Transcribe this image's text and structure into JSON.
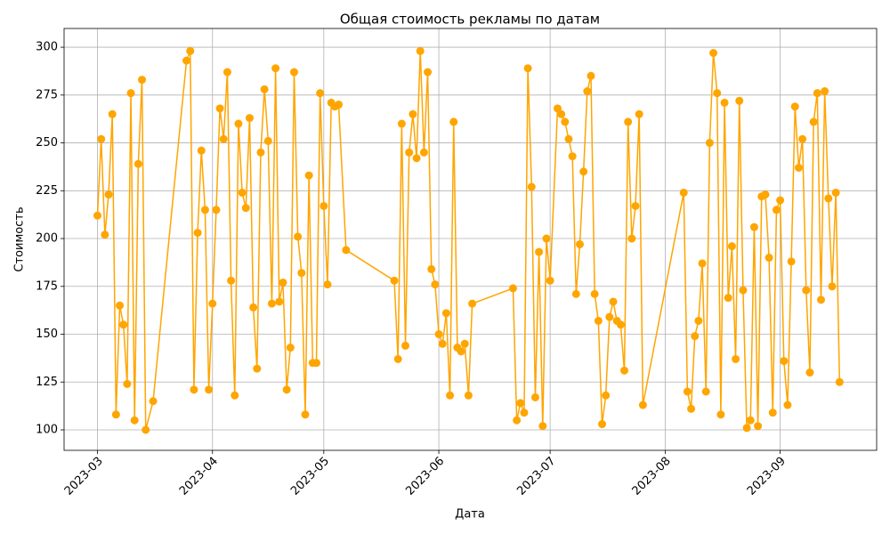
{
  "chart_data": {
    "type": "line",
    "title": "Общая стоимость рекламы по датам",
    "xlabel": "Дата",
    "ylabel": "Стоимость",
    "color": "#ffa500",
    "grid": true,
    "markers": true,
    "xlim": [
      "2023-02-20",
      "2023-09-27"
    ],
    "xticks": [
      {
        "value": "2023-03-01",
        "label": "2023-03"
      },
      {
        "value": "2023-04-01",
        "label": "2023-04"
      },
      {
        "value": "2023-05-01",
        "label": "2023-05"
      },
      {
        "value": "2023-06-01",
        "label": "2023-06"
      },
      {
        "value": "2023-07-01",
        "label": "2023-07"
      },
      {
        "value": "2023-08-01",
        "label": "2023-08"
      },
      {
        "value": "2023-09-01",
        "label": "2023-09"
      }
    ],
    "ylim": [
      89.3,
      309.8
    ],
    "yticks": [
      100,
      125,
      150,
      175,
      200,
      225,
      250,
      275,
      300
    ],
    "x": [
      "2023-03-01",
      "2023-03-02",
      "2023-03-03",
      "2023-03-04",
      "2023-03-05",
      "2023-03-06",
      "2023-03-07",
      "2023-03-08",
      "2023-03-09",
      "2023-03-10",
      "2023-03-11",
      "2023-03-12",
      "2023-03-13",
      "2023-03-14",
      "2023-03-16",
      "2023-03-25",
      "2023-03-26",
      "2023-03-27",
      "2023-03-28",
      "2023-03-29",
      "2023-03-30",
      "2023-03-31",
      "2023-04-01",
      "2023-04-02",
      "2023-04-03",
      "2023-04-04",
      "2023-04-05",
      "2023-04-06",
      "2023-04-07",
      "2023-04-08",
      "2023-04-09",
      "2023-04-10",
      "2023-04-11",
      "2023-04-12",
      "2023-04-13",
      "2023-04-14",
      "2023-04-15",
      "2023-04-16",
      "2023-04-17",
      "2023-04-18",
      "2023-04-19",
      "2023-04-20",
      "2023-04-21",
      "2023-04-22",
      "2023-04-23",
      "2023-04-24",
      "2023-04-25",
      "2023-04-26",
      "2023-04-27",
      "2023-04-28",
      "2023-04-29",
      "2023-04-30",
      "2023-05-01",
      "2023-05-02",
      "2023-05-03",
      "2023-05-04",
      "2023-05-05",
      "2023-05-07",
      "2023-05-20",
      "2023-05-21",
      "2023-05-22",
      "2023-05-23",
      "2023-05-24",
      "2023-05-25",
      "2023-05-26",
      "2023-05-27",
      "2023-05-28",
      "2023-05-29",
      "2023-05-30",
      "2023-05-31",
      "2023-06-01",
      "2023-06-02",
      "2023-06-03",
      "2023-06-04",
      "2023-06-05",
      "2023-06-06",
      "2023-06-07",
      "2023-06-08",
      "2023-06-09",
      "2023-06-10",
      "2023-06-21",
      "2023-06-22",
      "2023-06-23",
      "2023-06-24",
      "2023-06-25",
      "2023-06-26",
      "2023-06-27",
      "2023-06-28",
      "2023-06-29",
      "2023-06-30",
      "2023-07-01",
      "2023-07-03",
      "2023-07-04",
      "2023-07-05",
      "2023-07-06",
      "2023-07-07",
      "2023-07-08",
      "2023-07-09",
      "2023-07-10",
      "2023-07-11",
      "2023-07-12",
      "2023-07-13",
      "2023-07-14",
      "2023-07-15",
      "2023-07-16",
      "2023-07-17",
      "2023-07-18",
      "2023-07-19",
      "2023-07-20",
      "2023-07-21",
      "2023-07-22",
      "2023-07-23",
      "2023-07-24",
      "2023-07-25",
      "2023-07-26",
      "2023-08-06",
      "2023-08-07",
      "2023-08-08",
      "2023-08-09",
      "2023-08-10",
      "2023-08-11",
      "2023-08-12",
      "2023-08-13",
      "2023-08-14",
      "2023-08-15",
      "2023-08-16",
      "2023-08-17",
      "2023-08-18",
      "2023-08-19",
      "2023-08-20",
      "2023-08-21",
      "2023-08-22",
      "2023-08-23",
      "2023-08-24",
      "2023-08-25",
      "2023-08-26",
      "2023-08-27",
      "2023-08-28",
      "2023-08-29",
      "2023-08-30",
      "2023-08-31",
      "2023-09-01",
      "2023-09-02",
      "2023-09-03",
      "2023-09-04",
      "2023-09-05",
      "2023-09-06",
      "2023-09-07",
      "2023-09-08",
      "2023-09-09",
      "2023-09-10",
      "2023-09-11",
      "2023-09-12",
      "2023-09-13",
      "2023-09-14",
      "2023-09-15",
      "2023-09-16",
      "2023-09-17"
    ],
    "values": [
      212,
      252,
      202,
      223,
      265,
      108,
      165,
      155,
      124,
      276,
      105,
      239,
      283,
      100,
      115,
      293,
      298,
      121,
      203,
      246,
      215,
      121,
      166,
      215,
      268,
      252,
      287,
      178,
      118,
      260,
      224,
      216,
      263,
      164,
      132,
      245,
      278,
      251,
      166,
      289,
      167,
      177,
      121,
      143,
      287,
      201,
      182,
      108,
      233,
      135,
      135,
      276,
      217,
      176,
      271,
      269,
      270,
      194,
      178,
      137,
      260,
      144,
      245,
      265,
      242,
      298,
      245,
      287,
      184,
      176,
      150,
      145,
      161,
      118,
      261,
      143,
      141,
      145,
      118,
      166,
      174,
      105,
      114,
      109,
      289,
      227,
      117,
      193,
      102,
      200,
      178,
      268,
      265,
      261,
      252,
      243,
      171,
      197,
      235,
      277,
      285,
      171,
      157,
      103,
      118,
      159,
      167,
      157,
      155,
      131,
      261,
      200,
      217,
      265,
      113,
      224,
      120,
      111,
      149,
      157,
      187,
      120,
      250,
      297,
      276,
      108,
      271,
      169,
      196,
      137,
      272,
      173,
      101,
      105,
      206,
      102,
      222,
      223,
      190,
      109,
      215,
      220,
      136,
      113,
      188,
      269,
      237,
      252,
      173,
      130,
      261,
      276,
      168,
      277,
      221,
      175,
      224,
      125
    ]
  }
}
